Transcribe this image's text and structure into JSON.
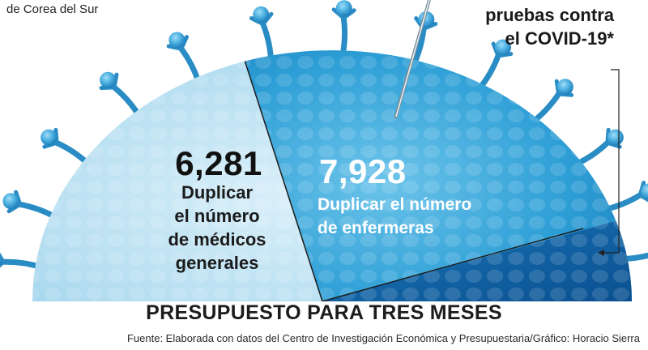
{
  "header": {
    "left_caption": "de Corea del Sur",
    "right_caption_lines": [
      "pruebas contra",
      "el COVID-19*"
    ]
  },
  "segments": [
    {
      "value": "6,281",
      "label_lines": [
        "Duplicar",
        "el número",
        "de médicos",
        "generales"
      ]
    },
    {
      "value": "7,928",
      "label_lines": [
        "Duplicar el número",
        "de enfermeras"
      ]
    }
  ],
  "title": "PRESUPUESTO PARA TRES MESES",
  "source": "Fuente: Elaborada con datos del Centro de Investigación Económica y Presupuestaria/Gráfico: Horacio Sierra",
  "colors": {
    "segment_light": "#a9d8ee",
    "segment_mid": "#2a9ed3",
    "segment_dark": "#0f62a6",
    "spike": "#2a8cc4",
    "spike_tip": "#56b8e6"
  }
}
